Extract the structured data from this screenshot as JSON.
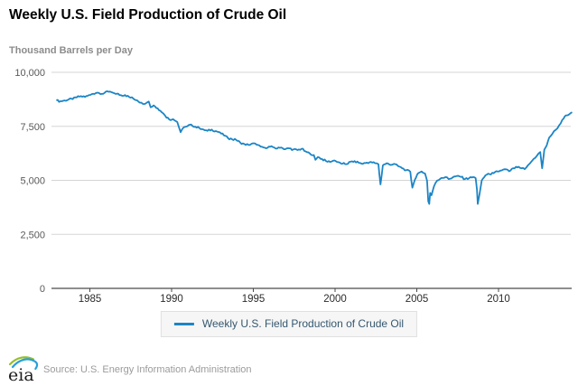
{
  "chart_data": {
    "type": "line",
    "title": "Weekly U.S. Field Production of Crude Oil",
    "ylabel": "Thousand Barrels per Day",
    "xlabel": "",
    "ylim": [
      0,
      10000
    ],
    "xlim": [
      1982.9,
      2014.7
    ],
    "grid": "horizontal-only",
    "legend_position": "bottom-center",
    "yticks": [
      {
        "value": 0,
        "label": "0"
      },
      {
        "value": 2500,
        "label": "2,500"
      },
      {
        "value": 5000,
        "label": "5,000"
      },
      {
        "value": 7500,
        "label": "7,500"
      },
      {
        "value": 10000,
        "label": "10,000"
      }
    ],
    "xticks": [
      {
        "value": 1985,
        "label": "1985"
      },
      {
        "value": 1990,
        "label": "1990"
      },
      {
        "value": 1995,
        "label": "1995"
      },
      {
        "value": 2000,
        "label": "2000"
      },
      {
        "value": 2005,
        "label": "2005"
      },
      {
        "value": 2010,
        "label": "2010"
      }
    ],
    "weekly_noise": 45,
    "series": [
      {
        "name": "Weekly U.S. Field Production of Crude Oil",
        "color": "#1b85c6",
        "points": [
          [
            1982.95,
            8700
          ],
          [
            1983.2,
            8660
          ],
          [
            1983.45,
            8700
          ],
          [
            1983.7,
            8740
          ],
          [
            1983.95,
            8760
          ],
          [
            1984.2,
            8840
          ],
          [
            1984.45,
            8900
          ],
          [
            1984.7,
            8860
          ],
          [
            1984.95,
            8950
          ],
          [
            1985.2,
            9010
          ],
          [
            1985.45,
            9060
          ],
          [
            1985.65,
            8990
          ],
          [
            1985.9,
            9050
          ],
          [
            1986.15,
            9100
          ],
          [
            1986.4,
            9060
          ],
          [
            1986.65,
            9010
          ],
          [
            1986.9,
            8940
          ],
          [
            1987.15,
            8950
          ],
          [
            1987.4,
            8860
          ],
          [
            1987.65,
            8790
          ],
          [
            1987.9,
            8700
          ],
          [
            1988.15,
            8600
          ],
          [
            1988.4,
            8550
          ],
          [
            1988.6,
            8650
          ],
          [
            1988.72,
            8380
          ],
          [
            1988.9,
            8470
          ],
          [
            1989.15,
            8330
          ],
          [
            1989.4,
            8150
          ],
          [
            1989.6,
            8000
          ],
          [
            1989.85,
            7820
          ],
          [
            1990.1,
            7830
          ],
          [
            1990.35,
            7700
          ],
          [
            1990.55,
            7230
          ],
          [
            1990.75,
            7460
          ],
          [
            1990.95,
            7500
          ],
          [
            1991.2,
            7580
          ],
          [
            1991.45,
            7480
          ],
          [
            1991.7,
            7420
          ],
          [
            1991.95,
            7350
          ],
          [
            1992.2,
            7290
          ],
          [
            1992.45,
            7350
          ],
          [
            1992.7,
            7280
          ],
          [
            1992.95,
            7220
          ],
          [
            1993.2,
            7080
          ],
          [
            1993.45,
            6960
          ],
          [
            1993.7,
            6900
          ],
          [
            1993.95,
            6870
          ],
          [
            1994.2,
            6750
          ],
          [
            1994.45,
            6680
          ],
          [
            1994.7,
            6640
          ],
          [
            1994.95,
            6710
          ],
          [
            1995.2,
            6650
          ],
          [
            1995.45,
            6560
          ],
          [
            1995.7,
            6510
          ],
          [
            1995.95,
            6560
          ],
          [
            1996.2,
            6540
          ],
          [
            1996.45,
            6470
          ],
          [
            1996.7,
            6520
          ],
          [
            1996.95,
            6440
          ],
          [
            1997.2,
            6480
          ],
          [
            1997.45,
            6430
          ],
          [
            1997.7,
            6400
          ],
          [
            1997.95,
            6460
          ],
          [
            1998.2,
            6340
          ],
          [
            1998.45,
            6250
          ],
          [
            1998.7,
            6170
          ],
          [
            1998.8,
            5950
          ],
          [
            1998.95,
            6080
          ],
          [
            1999.2,
            5990
          ],
          [
            1999.45,
            5890
          ],
          [
            1999.7,
            5850
          ],
          [
            1999.95,
            5920
          ],
          [
            2000.2,
            5840
          ],
          [
            2000.45,
            5770
          ],
          [
            2000.7,
            5750
          ],
          [
            2000.95,
            5860
          ],
          [
            2001.2,
            5890
          ],
          [
            2001.45,
            5810
          ],
          [
            2001.7,
            5760
          ],
          [
            2001.95,
            5820
          ],
          [
            2002.2,
            5850
          ],
          [
            2002.45,
            5790
          ],
          [
            2002.65,
            5750
          ],
          [
            2002.78,
            4810
          ],
          [
            2002.92,
            5690
          ],
          [
            2003.15,
            5790
          ],
          [
            2003.4,
            5710
          ],
          [
            2003.6,
            5760
          ],
          [
            2003.85,
            5660
          ],
          [
            2004.1,
            5560
          ],
          [
            2004.35,
            5470
          ],
          [
            2004.6,
            5400
          ],
          [
            2004.73,
            4660
          ],
          [
            2004.88,
            5020
          ],
          [
            2005.1,
            5340
          ],
          [
            2005.3,
            5410
          ],
          [
            2005.5,
            5320
          ],
          [
            2005.63,
            4980
          ],
          [
            2005.7,
            4030
          ],
          [
            2005.76,
            3910
          ],
          [
            2005.82,
            4420
          ],
          [
            2005.9,
            4310
          ],
          [
            2006.05,
            4720
          ],
          [
            2006.25,
            4990
          ],
          [
            2006.5,
            5110
          ],
          [
            2006.75,
            5150
          ],
          [
            2006.95,
            5060
          ],
          [
            2007.2,
            5140
          ],
          [
            2007.45,
            5200
          ],
          [
            2007.7,
            5160
          ],
          [
            2007.95,
            5060
          ],
          [
            2008.2,
            5100
          ],
          [
            2008.45,
            5150
          ],
          [
            2008.6,
            5100
          ],
          [
            2008.68,
            4580
          ],
          [
            2008.73,
            3910
          ],
          [
            2008.85,
            4420
          ],
          [
            2008.97,
            4990
          ],
          [
            2009.2,
            5230
          ],
          [
            2009.45,
            5290
          ],
          [
            2009.7,
            5330
          ],
          [
            2009.95,
            5410
          ],
          [
            2010.2,
            5460
          ],
          [
            2010.45,
            5510
          ],
          [
            2010.65,
            5420
          ],
          [
            2010.9,
            5560
          ],
          [
            2011.15,
            5600
          ],
          [
            2011.4,
            5560
          ],
          [
            2011.6,
            5520
          ],
          [
            2011.8,
            5700
          ],
          [
            2011.95,
            5810
          ],
          [
            2012.15,
            5990
          ],
          [
            2012.35,
            6140
          ],
          [
            2012.55,
            6310
          ],
          [
            2012.67,
            5560
          ],
          [
            2012.8,
            6420
          ],
          [
            2012.95,
            6620
          ],
          [
            2013.1,
            6980
          ],
          [
            2013.3,
            7160
          ],
          [
            2013.5,
            7340
          ],
          [
            2013.7,
            7540
          ],
          [
            2013.9,
            7800
          ],
          [
            2014.05,
            7960
          ],
          [
            2014.2,
            8010
          ],
          [
            2014.35,
            8070
          ],
          [
            2014.5,
            8150
          ]
        ]
      }
    ]
  },
  "colors": {
    "line": "#1b85c6",
    "gridline": "#d5d5d5",
    "axis": "#4a4a4a",
    "legend_bg": "#f6f6f6",
    "legend_border": "#e0e0e0",
    "logo_green": "#96bf2b",
    "logo_blue": "#27a0da"
  },
  "footer": {
    "logo_text": "eia",
    "source": "Source: U.S. Energy Information Administration"
  }
}
